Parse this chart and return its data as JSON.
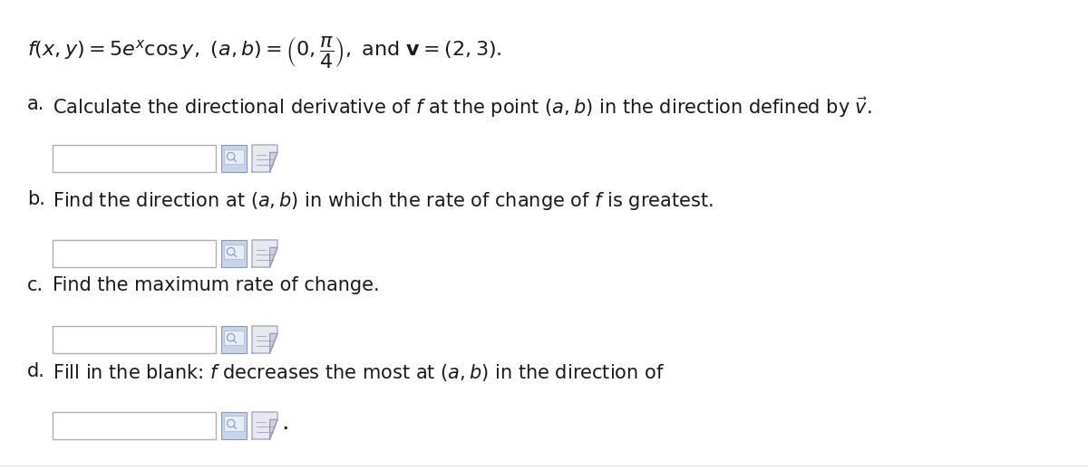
{
  "background_color": "#ffffff",
  "text_color": "#1a1a1a",
  "font_size": 15,
  "title_font_size": 16,
  "box_edge_color": "#b0b0b0",
  "box_face_color": "#ffffff",
  "icon1_face": "#c8d4e8",
  "icon1_edge": "#8899bb",
  "icon2_face": "#e8e8f0",
  "icon2_edge": "#9999bb",
  "title_text": "$f(x, y) = 5e^{x} \\cos y,\\ (a,b) = \\left(0, \\dfrac{\\pi}{4}\\right),\\ \\mathrm{and}\\ \\mathbf{v} = (2, 3).$",
  "questions": [
    {
      "label": "a.",
      "text": "Calculate the directional derivative of $f$ at the point $(a, b)$ in the direction defined by $\\vec{v}$.",
      "end_period": false
    },
    {
      "label": "b.",
      "text": "Find the direction at $(a, b)$ in which the rate of change of $f$ is greatest.",
      "end_period": false
    },
    {
      "label": "c.",
      "text": "Find the maximum rate of change.",
      "end_period": false
    },
    {
      "label": "d.",
      "text": "Fill in the blank: $f$ decreases the most at $(a, b)$ in the direction of",
      "end_period": true
    }
  ],
  "fig_width": 12.0,
  "fig_height": 5.19,
  "dpi": 100
}
